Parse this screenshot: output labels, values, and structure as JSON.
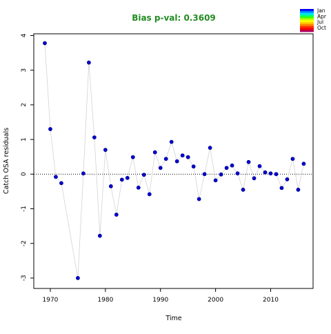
{
  "chart_data": {
    "type": "scatter",
    "title": "Bias p-val: 0.3609",
    "title_color": "#228B22",
    "xlabel": "Time",
    "ylabel": "Catch OSA residuals",
    "xlim": [
      1967,
      2017.7
    ],
    "ylim": [
      -3.3,
      4.05
    ],
    "xticks": [
      1970,
      1980,
      1990,
      2000,
      2010
    ],
    "yticks": [
      -3,
      -2,
      -1,
      0,
      1,
      2,
      3,
      4
    ],
    "reference_line": 0,
    "point_color": "#0000CD",
    "line_color": "#D3D3D3",
    "grid": false,
    "legend_position": "top-right",
    "legend": [
      "Jan",
      "Apr",
      "Jul",
      "Oct"
    ],
    "legend_colors": [
      "#0000FF",
      "#0080FF",
      "#00E0FF",
      "#00FF80",
      "#40FF00",
      "#C0FF00",
      "#FFFF00",
      "#FFC000",
      "#FF8000",
      "#FF3000",
      "#FF0000",
      "#B00060"
    ],
    "x": [
      1969,
      1970,
      1971,
      1972,
      1975,
      1976,
      1977,
      1978,
      1979,
      1980,
      1981,
      1982,
      1983,
      1984,
      1985,
      1986,
      1987,
      1988,
      1989,
      1990,
      1991,
      1992,
      1993,
      1994,
      1995,
      1996,
      1997,
      1998,
      1999,
      2000,
      2001,
      2002,
      2003,
      2004,
      2005,
      2006,
      2007,
      2008,
      2009,
      2010,
      2011,
      2012,
      2013,
      2014,
      2015,
      2016
    ],
    "y": [
      3.78,
      1.3,
      -0.08,
      -0.26,
      -3.0,
      0.02,
      3.22,
      1.06,
      -1.78,
      0.7,
      -0.35,
      -1.17,
      -0.16,
      -0.11,
      0.49,
      -0.39,
      -0.02,
      -0.58,
      0.63,
      0.18,
      0.44,
      0.93,
      0.37,
      0.54,
      0.49,
      0.22,
      -0.72,
      0.0,
      0.76,
      -0.18,
      -0.01,
      0.18,
      0.25,
      0.02,
      -0.45,
      0.35,
      -0.12,
      0.23,
      0.05,
      0.02,
      0.0,
      -0.4,
      -0.15,
      0.44,
      -0.45,
      0.3
    ]
  }
}
